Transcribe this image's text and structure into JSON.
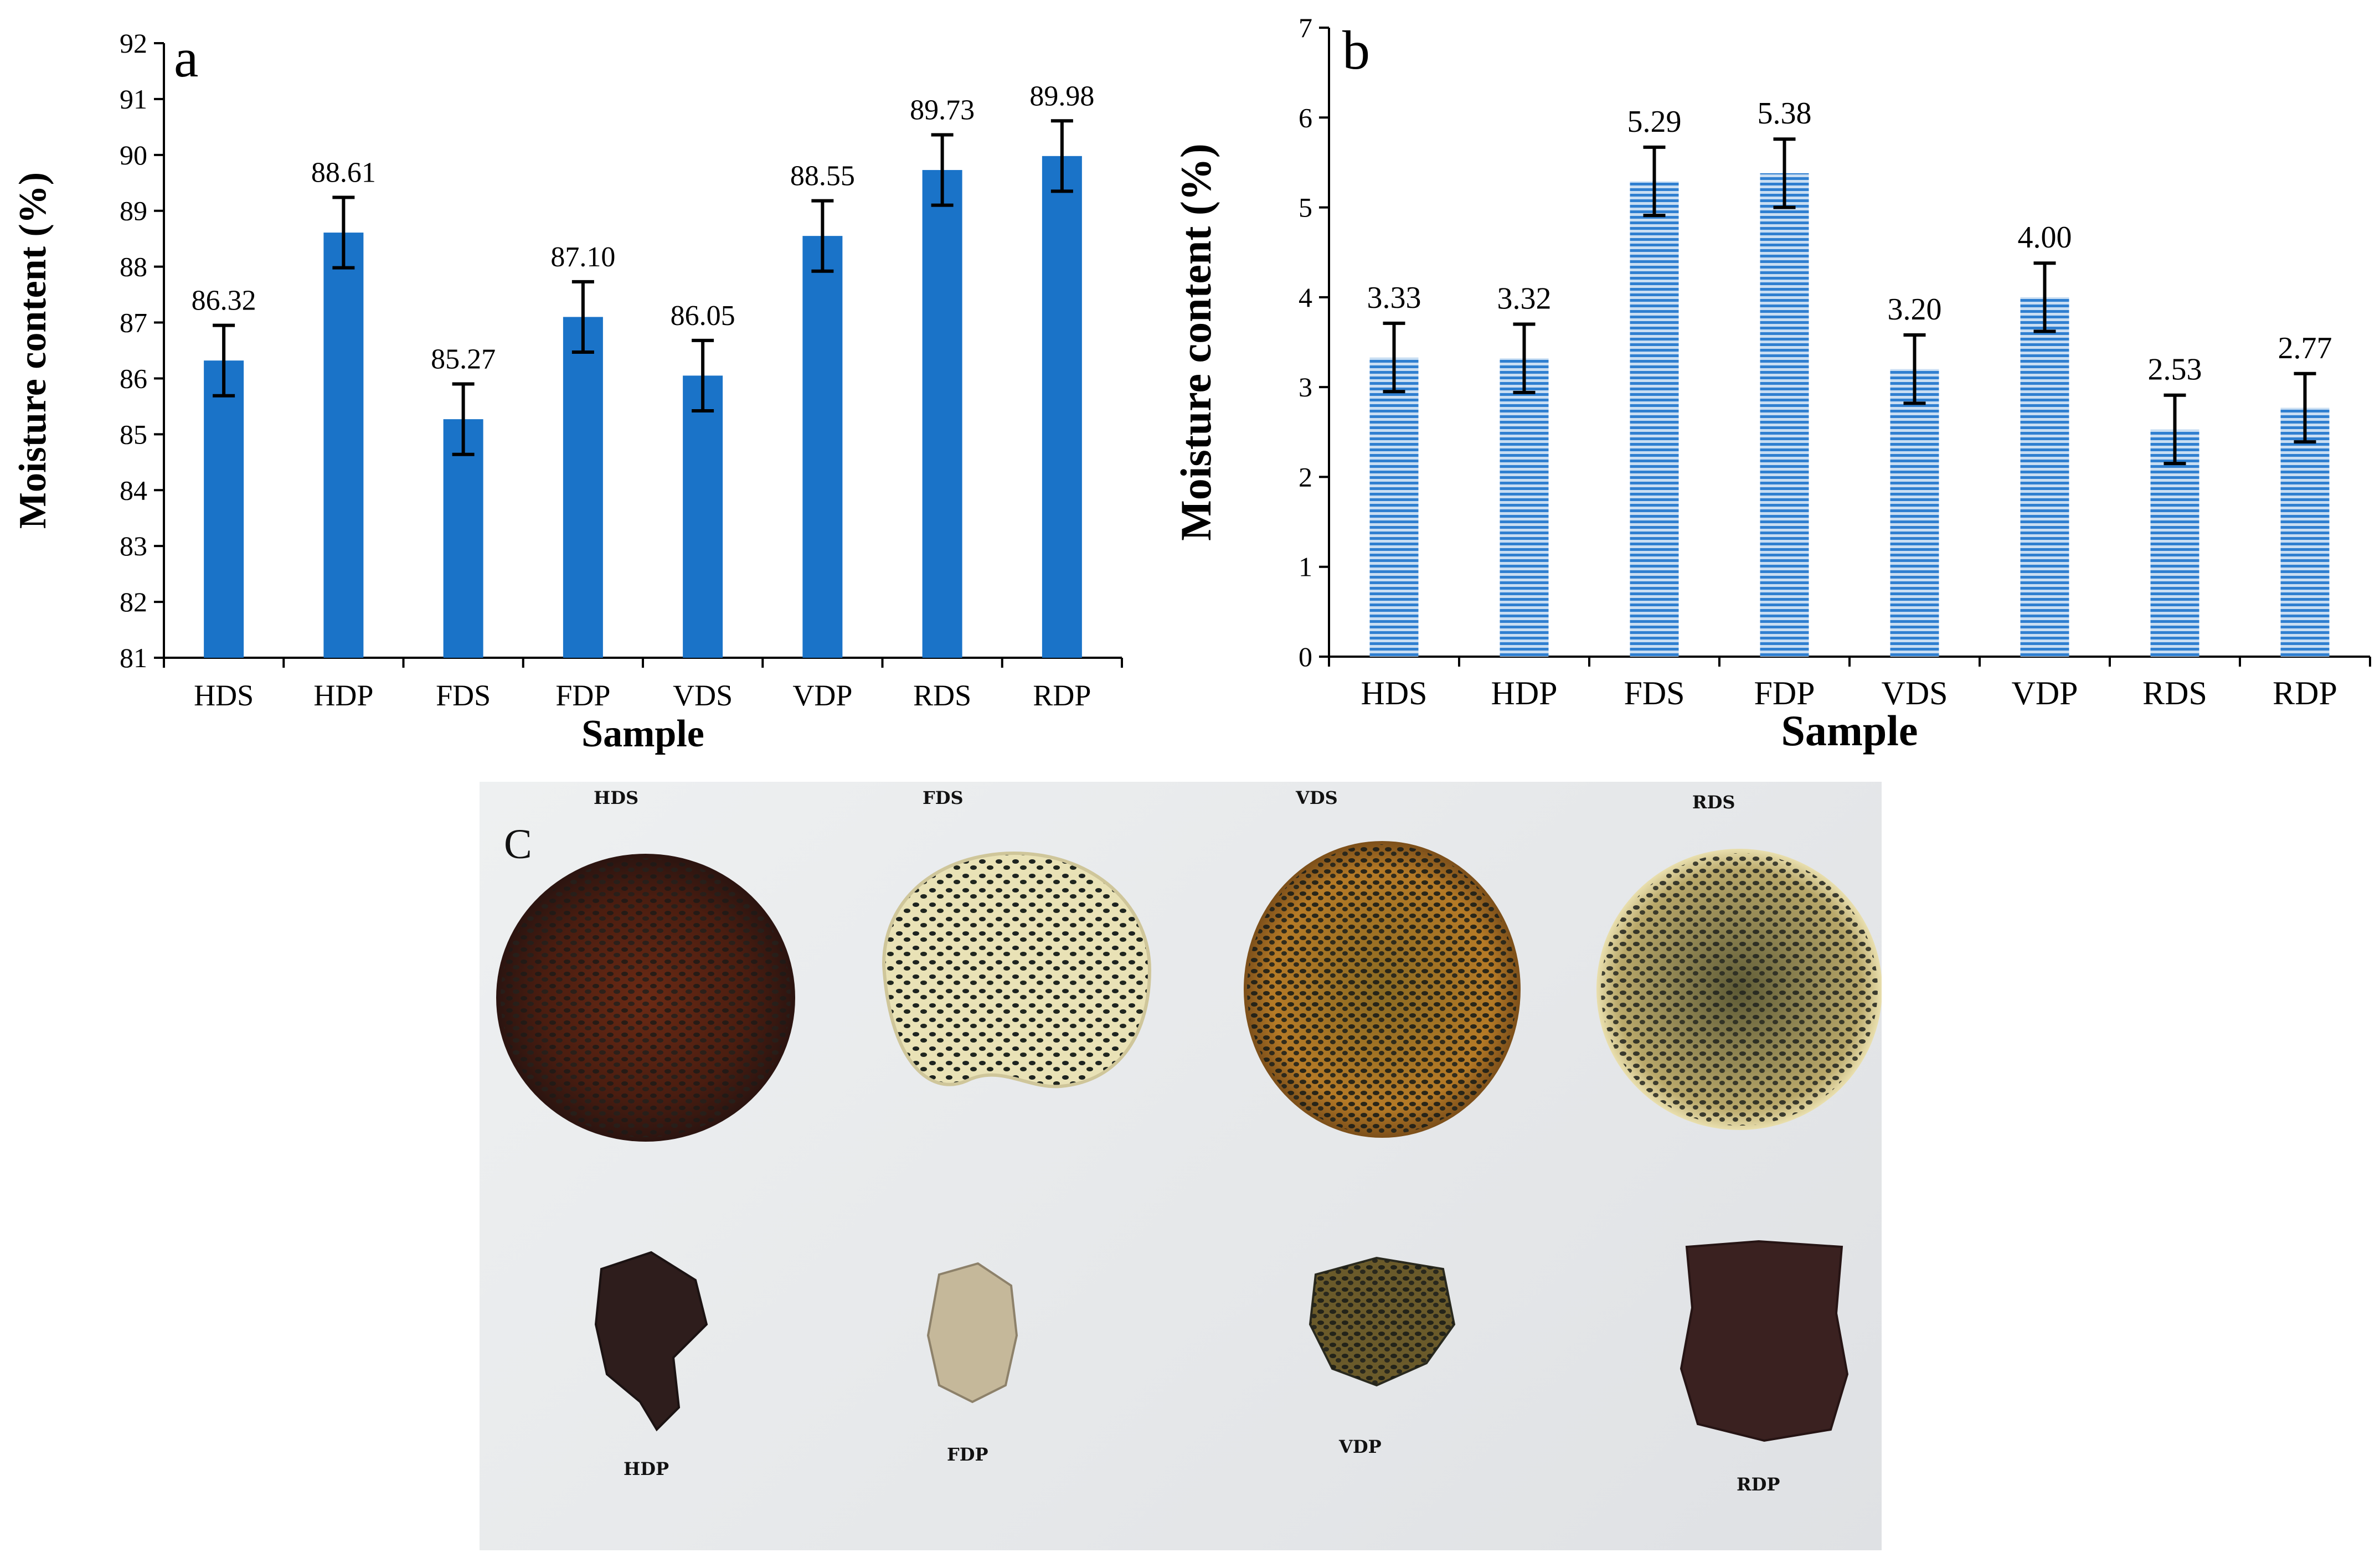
{
  "colors": {
    "bar_solid": "#1a73c8",
    "bar_striped_light": "#c9def3",
    "bar_striped_dark": "#2f7fd0",
    "error_bar": "#000000",
    "axis": "#000000"
  },
  "chart_data": [
    {
      "panel_label": "a",
      "type": "bar",
      "bar_style": "solid",
      "categories": [
        "HDS",
        "HDP",
        "FDS",
        "FDP",
        "VDS",
        "VDP",
        "RDS",
        "RDP"
      ],
      "values": [
        86.32,
        88.61,
        85.27,
        87.1,
        86.05,
        88.55,
        89.73,
        89.98
      ],
      "value_labels": [
        "86.32",
        "88.61",
        "85.27",
        "87.10",
        "86.05",
        "88.55",
        "89.73",
        "89.98"
      ],
      "error": [
        0.63,
        0.63,
        0.63,
        0.63,
        0.63,
        0.63,
        0.63,
        0.63
      ],
      "xlabel": "Sample",
      "ylabel": "Moisture content (%)",
      "ylim": [
        81,
        92
      ],
      "yticks": [
        81,
        82,
        83,
        84,
        85,
        86,
        87,
        88,
        89,
        90,
        91,
        92
      ],
      "grid": false
    },
    {
      "panel_label": "b",
      "type": "bar",
      "bar_style": "horizontal-stripes",
      "categories": [
        "HDS",
        "HDP",
        "FDS",
        "FDP",
        "VDS",
        "VDP",
        "RDS",
        "RDP"
      ],
      "values": [
        3.33,
        3.32,
        5.29,
        5.38,
        3.2,
        4.0,
        2.53,
        2.77
      ],
      "value_labels": [
        "3.33",
        "3.32",
        "5.29",
        "5.38",
        "3.20",
        "4.00",
        "2.53",
        "2.77"
      ],
      "error": [
        0.38,
        0.38,
        0.38,
        0.38,
        0.38,
        0.38,
        0.38,
        0.38
      ],
      "xlabel": "Sample",
      "ylabel": "Moisture content (%)",
      "ylim": [
        0,
        7
      ],
      "yticks": [
        0,
        1,
        2,
        3,
        4,
        5,
        6,
        7
      ],
      "grid": false
    }
  ],
  "photo": {
    "panel_label": "C",
    "top_labels": [
      "HDS",
      "FDS",
      "VDS",
      "RDS"
    ],
    "bottom_labels": [
      "HDP",
      "FDP",
      "VDP",
      "RDP"
    ]
  }
}
